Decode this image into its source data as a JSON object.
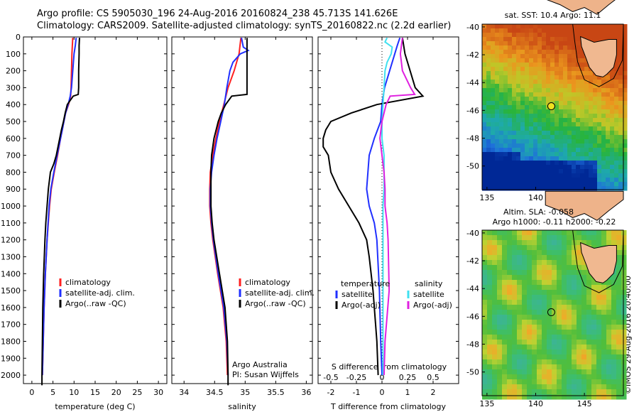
{
  "header": {
    "line1": "Argo profile: CS 5905030_196 24-Aug-2016 20160824_238 45.713S 141.626E",
    "line2": "Climatology: CARS2009. Satellite-adjusted climatology: synTS_20160822.nc (2.2d earlier)"
  },
  "stamp": "©IMOS 29-Aug-2016 20:40:00",
  "colors": {
    "climatology": "#ff2020",
    "satellite": "#2030ff",
    "argo": "#000000",
    "sat_diff": "#40e0f0",
    "argo_s_diff": "#e020e0"
  },
  "depth_axis": {
    "min": 0,
    "max": 2050,
    "ticks": [
      "0",
      "100",
      "200",
      "300",
      "400",
      "500",
      "600",
      "700",
      "800",
      "900",
      "1000",
      "1100",
      "1200",
      "1300",
      "1400",
      "1500",
      "1600",
      "1700",
      "1800",
      "1900",
      "2000"
    ]
  },
  "chart_data": [
    {
      "type": "line",
      "xlabel": "temperature (deg C)",
      "xlim": [
        -2,
        32
      ],
      "xticks": [
        "0",
        "5",
        "10",
        "15",
        "20",
        "25",
        "30"
      ],
      "legend": {
        "placement": "lower-middle",
        "items": [
          "climatology",
          "satellite-adj. clim.",
          "Argo(..raw -QC)"
        ]
      },
      "series": [
        {
          "name": "climatology",
          "depth": [
            5,
            50,
            100,
            200,
            300,
            350,
            400,
            450,
            500,
            550,
            600,
            700,
            800,
            900,
            1000,
            1200,
            1400,
            1600,
            1800,
            2000
          ],
          "values": [
            9.7,
            9.6,
            9.5,
            9.4,
            9.3,
            9.2,
            8.7,
            8.0,
            7.6,
            7.2,
            6.8,
            6.1,
            5.3,
            4.6,
            4.2,
            3.6,
            3.2,
            2.9,
            2.7,
            2.5
          ]
        },
        {
          "name": "satellite-adj. clim.",
          "depth": [
            5,
            50,
            100,
            200,
            300,
            350,
            400,
            450,
            500,
            550,
            600,
            700,
            800,
            900,
            1000,
            1200,
            1400,
            1600,
            1800,
            2000
          ],
          "values": [
            10.5,
            10.3,
            10.0,
            9.7,
            9.4,
            9.1,
            8.6,
            8.0,
            7.6,
            7.2,
            6.8,
            6.0,
            5.2,
            4.5,
            4.1,
            3.6,
            3.2,
            2.9,
            2.7,
            2.5
          ]
        },
        {
          "name": "Argo(..raw -QC)",
          "depth": [
            5,
            50,
            100,
            200,
            300,
            340,
            350,
            400,
            450,
            500,
            550,
            600,
            700,
            750,
            800,
            900,
            1000,
            1100,
            1200,
            1400,
            1600,
            1800,
            2000,
            2060
          ],
          "values": [
            11.3,
            11.2,
            11.2,
            11.1,
            11.1,
            11.0,
            9.8,
            8.4,
            7.9,
            7.5,
            7.0,
            6.6,
            5.8,
            5.2,
            4.4,
            3.9,
            3.6,
            3.3,
            3.1,
            2.8,
            2.6,
            2.5,
            2.4,
            2.4
          ]
        }
      ]
    },
    {
      "type": "line",
      "xlabel": "salinity",
      "xlim": [
        33.8,
        36.1
      ],
      "xticks": [
        "34",
        "34.5",
        "35",
        "35.5",
        "36"
      ],
      "legend": {
        "placement": "lower-middle",
        "items": [
          "climatology",
          "satellite-adj. clim.",
          "Argo(..raw -QC)"
        ]
      },
      "annotation": [
        "Argo Australia",
        "PI: Susan Wijffels"
      ],
      "series": [
        {
          "name": "climatology",
          "depth": [
            5,
            100,
            200,
            300,
            400,
            500,
            600,
            700,
            800,
            900,
            1000,
            1100,
            1200,
            1400,
            1600,
            1800,
            2000
          ],
          "values": [
            34.93,
            34.9,
            34.82,
            34.72,
            34.65,
            34.58,
            34.52,
            34.47,
            34.43,
            34.42,
            34.42,
            34.44,
            34.47,
            34.55,
            34.64,
            34.69,
            34.71
          ]
        },
        {
          "name": "satellite-adj. clim.",
          "depth": [
            5,
            60,
            80,
            100,
            150,
            200,
            300,
            400,
            500,
            600,
            700,
            800,
            900,
            1000,
            1100,
            1200,
            1400,
            1600,
            1800,
            2000
          ],
          "values": [
            34.94,
            34.97,
            35.05,
            34.92,
            34.8,
            34.75,
            34.7,
            34.66,
            34.6,
            34.54,
            34.49,
            34.45,
            34.43,
            34.43,
            34.45,
            34.48,
            34.56,
            34.65,
            34.7,
            34.72
          ]
        },
        {
          "name": "Argo(..raw -QC)",
          "depth": [
            5,
            100,
            200,
            300,
            340,
            350,
            400,
            450,
            500,
            600,
            700,
            800,
            900,
            1000,
            1100,
            1200,
            1400,
            1600,
            1800,
            2000,
            2060
          ],
          "values": [
            35.03,
            35.03,
            35.03,
            35.03,
            35.03,
            34.78,
            34.68,
            34.61,
            34.56,
            34.49,
            34.45,
            34.44,
            34.44,
            34.44,
            34.46,
            34.49,
            34.58,
            34.67,
            34.71,
            34.72,
            34.72
          ]
        }
      ]
    },
    {
      "type": "line",
      "xlabel": "T difference from climatology",
      "xlabel_top": "S difference from climatology",
      "xlim": [
        -2.5,
        3.0
      ],
      "xticks": [
        "-2",
        "-1",
        "0",
        "1",
        "2"
      ],
      "xticks_top": [
        "-0.5",
        "-0.25",
        "0",
        "0.25",
        "0.5"
      ],
      "legend": {
        "placement": "lower",
        "groups": [
          "temperature",
          "salinity"
        ],
        "items_t": [
          "satellite",
          "Argo(-adj)"
        ],
        "items_s": [
          "satellite",
          "Argo(-adj)"
        ]
      },
      "series": [
        {
          "name": "satellite",
          "group": "temperature",
          "depth": [
            5,
            50,
            100,
            200,
            300,
            400,
            500,
            600,
            700,
            800,
            900,
            1000,
            1100,
            1200,
            1500,
            1800,
            2000
          ],
          "values": [
            0.7,
            0.6,
            0.5,
            0.3,
            0.1,
            0.0,
            -0.05,
            -0.3,
            -0.5,
            -0.55,
            -0.6,
            -0.5,
            -0.3,
            -0.2,
            -0.1,
            -0.05,
            0.0
          ]
        },
        {
          "name": "Argo(-adj)",
          "group": "temperature",
          "depth": [
            5,
            100,
            200,
            300,
            350,
            400,
            450,
            500,
            550,
            600,
            650,
            700,
            800,
            900,
            1000,
            1100,
            1200,
            1300,
            1500,
            1700,
            1800,
            2000
          ],
          "values": [
            0.8,
            0.9,
            1.1,
            1.3,
            1.6,
            -0.2,
            -1.2,
            -2.0,
            -2.2,
            -2.3,
            -2.3,
            -2.1,
            -2.0,
            -1.7,
            -1.3,
            -0.9,
            -0.6,
            -0.5,
            -0.35,
            -0.25,
            -0.2,
            -0.15
          ]
        },
        {
          "name": "satellite",
          "group": "salinity",
          "depth": [
            5,
            30,
            60,
            100,
            150,
            200,
            300,
            400,
            500,
            600,
            700,
            800,
            900,
            1000,
            1200,
            1500,
            2000
          ],
          "values": [
            0.05,
            0.03,
            0.1,
            0.09,
            0.05,
            0.03,
            0.02,
            0.01,
            0.0,
            0.0,
            0.02,
            0.02,
            0.02,
            0.01,
            0.01,
            0.01,
            0.01
          ]
        },
        {
          "name": "Argo(-adj)",
          "group": "salinity",
          "depth": [
            5,
            100,
            200,
            300,
            340,
            350,
            400,
            500,
            600,
            700,
            800,
            900,
            1000,
            1100,
            1200,
            1500,
            1800,
            2000
          ],
          "values": [
            0.2,
            0.18,
            0.2,
            0.28,
            0.32,
            0.08,
            0.04,
            0.0,
            -0.02,
            0.0,
            0.02,
            0.03,
            0.03,
            0.05,
            0.06,
            0.07,
            0.03,
            0.02
          ]
        }
      ]
    },
    {
      "type": "heatmap",
      "title": "sat. SST: 10.4 Argo: 11.1",
      "xlim": [
        134.5,
        149
      ],
      "ylim": [
        -51.7,
        -39.8
      ],
      "xticks": [
        "135",
        "140",
        "145"
      ],
      "yticks": [
        "-40",
        "-42",
        "-44",
        "-46",
        "-48",
        "-50"
      ],
      "argo_marker": {
        "lon": 141.6,
        "lat": -45.7
      }
    },
    {
      "type": "heatmap",
      "title": "Altim. SLA: -0.058",
      "subtitle": "Argo h1000: -0.11 h2000: -0.22",
      "xlim": [
        134.5,
        149
      ],
      "ylim": [
        -51.7,
        -39.8
      ],
      "xticks": [
        "135",
        "140",
        "145"
      ],
      "yticks": [
        "-40",
        "-42",
        "-44",
        "-46",
        "-48",
        "-50"
      ],
      "argo_marker": {
        "lon": 141.6,
        "lat": -45.7
      }
    }
  ]
}
